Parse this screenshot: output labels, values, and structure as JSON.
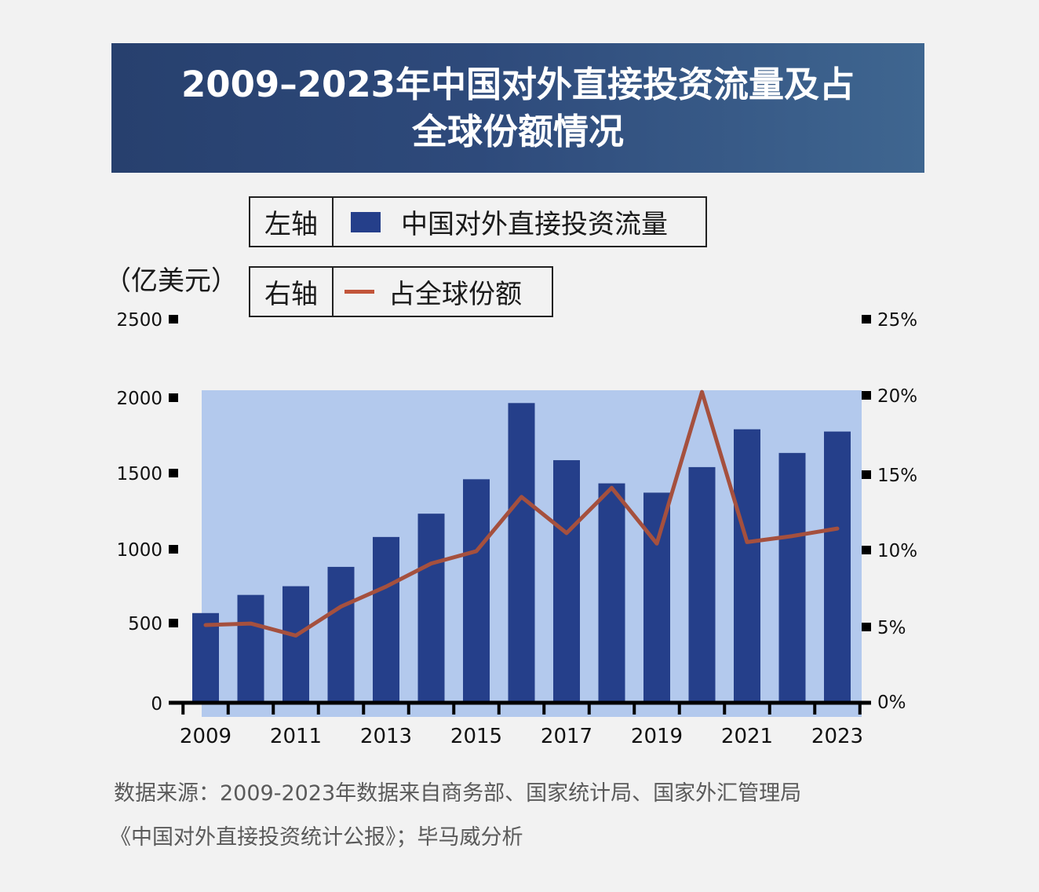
{
  "header": {
    "title_line1": "2009–2023年中国对外直接投资流量及占",
    "title_line2": "全球份额情况"
  },
  "legend": {
    "left_axis_label": "左轴",
    "left_series_label": "中国对外直接投资流量",
    "right_axis_label": "右轴",
    "right_series_label": "占全球份额"
  },
  "unit_label": "（亿美元）",
  "source": {
    "line1": "数据来源：2009-2023年数据来自商务部、国家统计局、国家外汇管理局",
    "line2": "《中国对外直接投资统计公报》；毕马威分析"
  },
  "colors": {
    "bar": "#253f8a",
    "line": "#a5503e",
    "plot_bg": "#b3c9ed",
    "banner": "#2e4a7b"
  },
  "chart_data": {
    "type": "bar",
    "categories": [
      "2009",
      "2010",
      "2011",
      "2012",
      "2013",
      "2014",
      "2015",
      "2016",
      "2017",
      "2018",
      "2019",
      "2020",
      "2021",
      "2022",
      "2023"
    ],
    "x_tick_labels": [
      "2009",
      "2011",
      "2013",
      "2015",
      "2017",
      "2019",
      "2021",
      "2023"
    ],
    "series": [
      {
        "name": "中国对外直接投资流量",
        "axis": "left",
        "type": "bar",
        "values": [
          565,
          688,
          747,
          878,
          1078,
          1231,
          1457,
          1962,
          1583,
          1430,
          1369,
          1537,
          1788,
          1631,
          1773
        ]
      },
      {
        "name": "占全球份额",
        "axis": "right",
        "type": "line",
        "values": [
          5.1,
          5.2,
          4.4,
          6.3,
          7.6,
          9.1,
          9.9,
          13.5,
          11.1,
          14.1,
          10.4,
          20.2,
          10.5,
          10.9,
          11.4
        ]
      }
    ],
    "left_ticks": [
      "0",
      "500",
      "1000",
      "1500",
      "2000",
      "2500"
    ],
    "right_ticks": [
      "0%",
      "5%",
      "10%",
      "15%",
      "20%",
      "25%"
    ],
    "ylim_left": [
      0,
      2500
    ],
    "ylim_right": [
      0,
      25
    ]
  }
}
